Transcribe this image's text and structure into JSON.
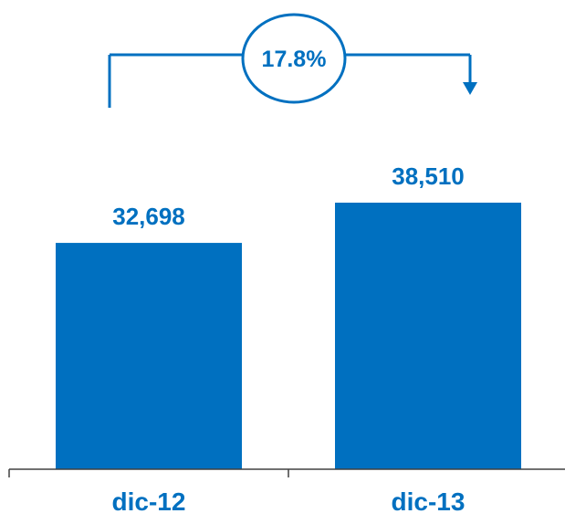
{
  "chart_data": {
    "type": "bar",
    "categories": [
      "dic-12",
      "dic-13"
    ],
    "values": [
      32698,
      38510
    ],
    "value_labels": [
      "32,698",
      "38,510"
    ],
    "title": "",
    "xlabel": "",
    "ylabel": "",
    "ylim": [
      0,
      38510
    ],
    "grid": false,
    "legend": "none",
    "annotation": {
      "label": "17.8%",
      "from_category": "dic-12",
      "to_category": "dic-13"
    }
  },
  "colors": {
    "bar": "#0070C0",
    "text": "#0070C0",
    "axis": "#404040",
    "background": "#ffffff"
  }
}
